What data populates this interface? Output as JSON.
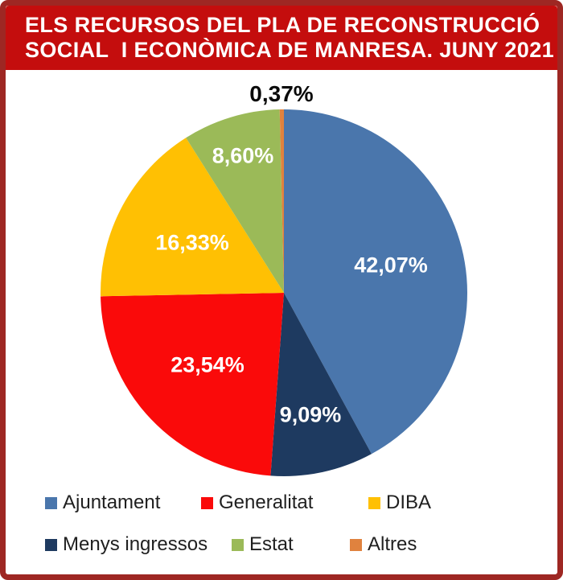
{
  "title": {
    "line1": "ELS RECURSOS DEL PLA DE RECONSTRUCCIÓ",
    "line2": "SOCIAL  I ECONÒMICA DE MANRESA. JUNY 2021"
  },
  "colors": {
    "banner_background": "#C40D0D",
    "banner_text": "#FFFFFF",
    "outer_border": "#9E2723",
    "background": "#FFFFFF",
    "legend_text": "#1F1F1F"
  },
  "chart_data": {
    "type": "pie",
    "title": "ELS RECURSOS DEL PLA DE RECONSTRUCCIÓ SOCIAL I ECONÒMICA DE MANRESA. JUNY 2021",
    "unit": "%",
    "decimal_separator": ",",
    "start_angle_deg": 0,
    "direction": "clockwise",
    "legend_position": "bottom",
    "slices": [
      {
        "label": "Ajuntament",
        "value": 42.07,
        "display": "42,07%",
        "color": "#4A76AC",
        "label_color": "#FFFFFF",
        "outside": false
      },
      {
        "label": "Menys ingressos",
        "value": 9.09,
        "display": "9,09%",
        "color": "#1E3A60",
        "label_color": "#FFFFFF",
        "outside": false
      },
      {
        "label": "Generalitat",
        "value": 23.54,
        "display": "23,54%",
        "color": "#FA0A0A",
        "label_color": "#FFFFFF",
        "outside": false
      },
      {
        "label": "DIBA",
        "value": 16.33,
        "display": "16,33%",
        "color": "#FFC003",
        "label_color": "#FFFFFF",
        "outside": false
      },
      {
        "label": "Estat",
        "value": 8.6,
        "display": "8,60%",
        "color": "#9BBA58",
        "label_color": "#FFFFFF",
        "outside": false
      },
      {
        "label": "Altres",
        "value": 0.37,
        "display": "0,37%",
        "color": "#E0823E",
        "label_color": "#0A0A0A",
        "outside": true
      }
    ]
  },
  "legend": {
    "rows": [
      [
        "Ajuntament",
        "Generalitat",
        "DIBA"
      ],
      [
        "Menys ingressos",
        "Estat",
        "Altres"
      ]
    ]
  }
}
